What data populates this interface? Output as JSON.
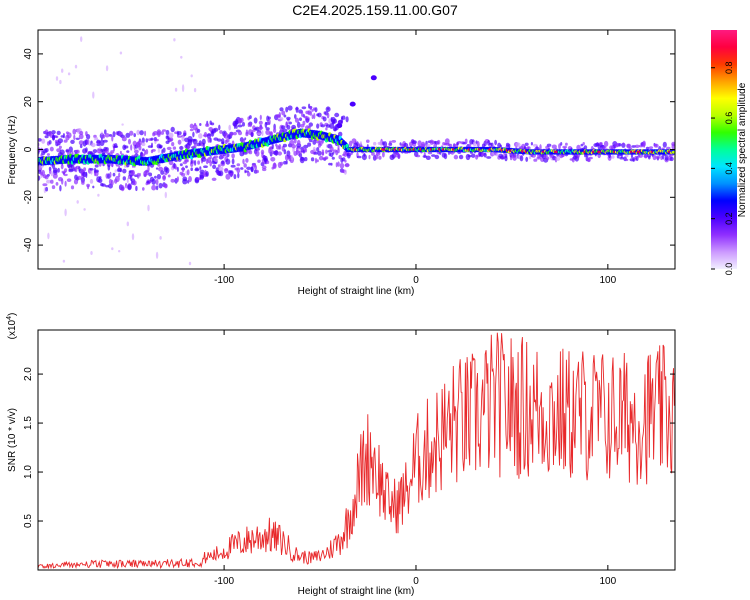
{
  "figure": {
    "title": "C2E4.2025.159.11.00.G07"
  },
  "chart_data": [
    {
      "type": "heatmap",
      "xlabel": "Height of straight line (km)",
      "ylabel": "Frequency (Hz)",
      "xlim": [
        -197,
        135
      ],
      "ylim": [
        -50,
        50
      ],
      "x_ticks": [
        -100,
        0,
        100
      ],
      "y_ticks": [
        -40,
        -20,
        0,
        20,
        40
      ],
      "colorbar": {
        "label": "Normalized spectral amplitude",
        "range": [
          0.0,
          0.95
        ],
        "ticks": [
          "0.0",
          "0.2",
          "0.4",
          "0.6",
          "0.8"
        ],
        "colors": [
          "#f2f0ff",
          "#cc99ff",
          "#8f2fff",
          "#4b00ff",
          "#0000ff",
          "#0090ff",
          "#00e5ff",
          "#00ff9a",
          "#30ff00",
          "#b8ff00",
          "#ffff00",
          "#ffa000",
          "#ff3a00",
          "#ff0040",
          "#ff1a80"
        ]
      },
      "ridge": {
        "x": [
          -197,
          -180,
          -160,
          -140,
          -120,
          -100,
          -90,
          -80,
          -70,
          -60,
          -50,
          -40,
          -35,
          -30,
          -25,
          -20,
          -10,
          0,
          20,
          40,
          60,
          80,
          100,
          120,
          135
        ],
        "freq": [
          -5,
          -4,
          -4,
          -5,
          -2,
          0,
          1,
          3,
          5,
          7,
          6,
          4,
          0,
          0,
          0,
          0,
          0,
          0,
          0,
          0,
          -1,
          -1,
          -1,
          -1,
          -1
        ]
      },
      "artifact_points": [
        {
          "x": -22,
          "freq": 30
        },
        {
          "x": -33,
          "freq": 19
        },
        {
          "x": -40,
          "freq": 10
        }
      ]
    },
    {
      "type": "line",
      "xlabel": "Height of straight line (km)",
      "ylabel": "SNR (10 * v/v)",
      "y_multiplier": "(x10^4)",
      "xlim": [
        -197,
        135
      ],
      "ylim": [
        0,
        24500
      ],
      "x_ticks": [
        -100,
        0,
        100
      ],
      "y_ticks": [
        5000,
        10000,
        15000,
        20000
      ],
      "y_tick_labels": [
        "0.5",
        "1.0",
        "1.5",
        "2.0"
      ],
      "color": "#e8282a",
      "series": [
        {
          "x": [
            -197,
            -180,
            -160,
            -140,
            -120,
            -105,
            -95,
            -85,
            -78,
            -70,
            -62,
            -55,
            -50,
            -45,
            -40,
            -35,
            -30,
            -27,
            -23,
            -20,
            -15,
            -10,
            -5,
            0,
            10,
            20,
            30,
            40,
            50,
            60,
            70,
            80,
            90,
            100,
            110,
            120,
            135
          ],
          "y": [
            400,
            600,
            700,
            650,
            800,
            1500,
            2500,
            3200,
            3600,
            3000,
            1500,
            1200,
            1400,
            2000,
            3000,
            5000,
            9000,
            11000,
            12000,
            10000,
            7000,
            6500,
            8000,
            11000,
            13000,
            15000,
            15500,
            17000,
            16800,
            16500,
            16000,
            15800,
            16000,
            15600,
            15500,
            15800,
            16000
          ]
        }
      ]
    }
  ]
}
